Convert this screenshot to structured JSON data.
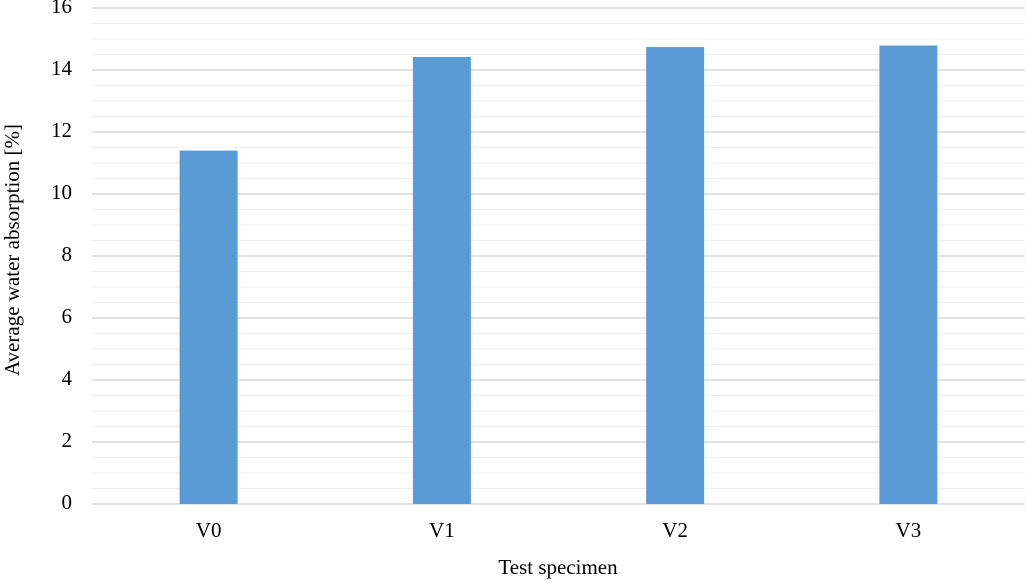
{
  "chart_data": {
    "type": "bar",
    "x_label": "Test specimen",
    "y_label": "Average water absorption [%]",
    "categories": [
      "V0",
      "V1",
      "V2",
      "V3"
    ],
    "values": [
      11.4,
      14.42,
      14.74,
      14.79
    ],
    "color": "#5b9bd5",
    "ylim": [
      0,
      16
    ],
    "yticks": [
      0,
      2,
      4,
      6,
      8,
      10,
      12,
      14,
      16
    ],
    "grid": true,
    "minor_grid": 0.5
  }
}
